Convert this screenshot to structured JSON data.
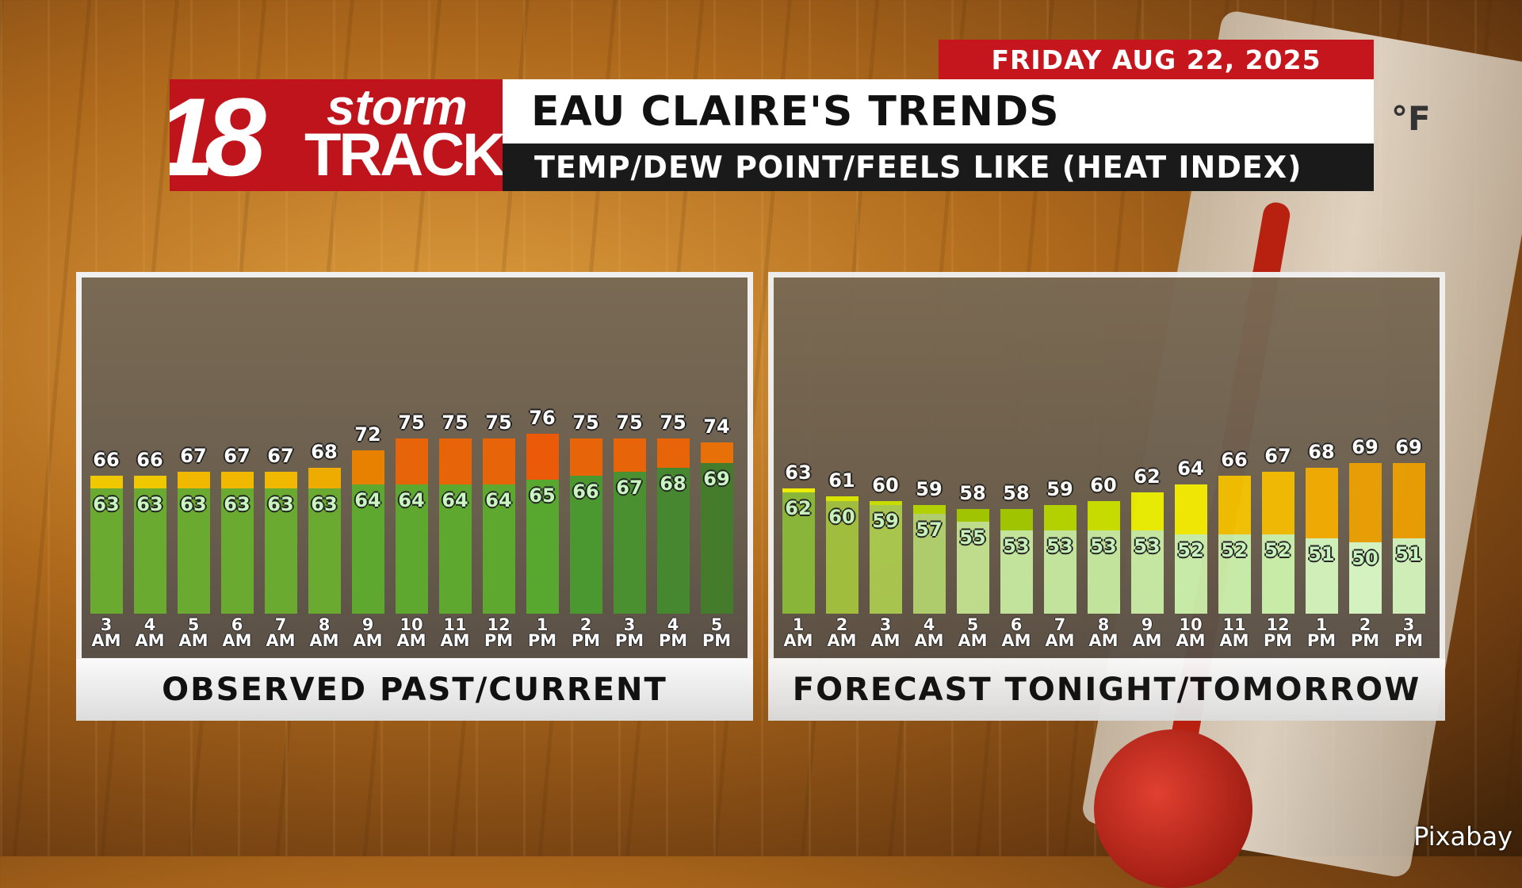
{
  "header": {
    "date": "FRIDAY AUG 22, 2025",
    "logo_number": "18",
    "logo_storm": "storm",
    "logo_track": "TRACK",
    "title": "EAU CLAIRE'S TRENDS",
    "subtitle": "TEMP/DEW POINT/FEELS LIKE (HEAT INDEX)"
  },
  "background": {
    "thermometer_unit": "°F"
  },
  "credit": "Pixabay",
  "chart_data": [
    {
      "type": "bar",
      "title": "OBSERVED PAST/CURRENT",
      "categories": [
        [
          "3",
          "AM"
        ],
        [
          "4",
          "AM"
        ],
        [
          "5",
          "AM"
        ],
        [
          "6",
          "AM"
        ],
        [
          "7",
          "AM"
        ],
        [
          "8",
          "AM"
        ],
        [
          "9",
          "AM"
        ],
        [
          "10",
          "AM"
        ],
        [
          "11",
          "AM"
        ],
        [
          "12",
          "PM"
        ],
        [
          "1",
          "PM"
        ],
        [
          "2",
          "PM"
        ],
        [
          "3",
          "PM"
        ],
        [
          "4",
          "PM"
        ],
        [
          "5",
          "PM"
        ]
      ],
      "series": [
        {
          "values": [
            66,
            66,
            67,
            67,
            67,
            68,
            72,
            75,
            75,
            75,
            76,
            75,
            75,
            75,
            74
          ],
          "colors": [
            "#f0c800",
            "#f0c800",
            "#f0b800",
            "#f0b800",
            "#f0b800",
            "#efac00",
            "#e88000",
            "#e86408",
            "#e86408",
            "#e86408",
            "#ea5a08",
            "#e86408",
            "#e86408",
            "#e86408",
            "#e87008"
          ]
        },
        {
          "values": [
            63,
            63,
            63,
            63,
            63,
            63,
            64,
            64,
            64,
            64,
            65,
            66,
            67,
            68,
            69
          ],
          "colors": [
            "#6aaa30",
            "#6aaa30",
            "#6aaa30",
            "#6aaa30",
            "#6aaa30",
            "#6aaa30",
            "#5ea830",
            "#5ea830",
            "#5ea830",
            "#5ea830",
            "#58a830",
            "#4c9830",
            "#4a9030",
            "#468830",
            "#447c2c"
          ]
        }
      ]
    },
    {
      "type": "bar",
      "title": "FORECAST TONIGHT/TOMORROW",
      "categories": [
        [
          "1",
          "AM"
        ],
        [
          "2",
          "AM"
        ],
        [
          "3",
          "AM"
        ],
        [
          "4",
          "AM"
        ],
        [
          "5",
          "AM"
        ],
        [
          "6",
          "AM"
        ],
        [
          "7",
          "AM"
        ],
        [
          "8",
          "AM"
        ],
        [
          "9",
          "AM"
        ],
        [
          "10",
          "AM"
        ],
        [
          "11",
          "AM"
        ],
        [
          "12",
          "PM"
        ],
        [
          "1",
          "PM"
        ],
        [
          "2",
          "PM"
        ],
        [
          "3",
          "PM"
        ]
      ],
      "series": [
        {
          "values": [
            63,
            61,
            60,
            59,
            58,
            58,
            59,
            60,
            62,
            64,
            66,
            67,
            68,
            69,
            69
          ],
          "colors": [
            "#f0f000",
            "#d8e800",
            "#c8e000",
            "#b4d400",
            "#a0c800",
            "#a0c800",
            "#b4d400",
            "#c8e000",
            "#e8ec00",
            "#f0e800",
            "#f0c000",
            "#f0b800",
            "#f0a800",
            "#e89c00",
            "#e89c00"
          ]
        },
        {
          "values": [
            62,
            60,
            59,
            57,
            55,
            53,
            53,
            53,
            53,
            52,
            52,
            52,
            51,
            50,
            51
          ],
          "colors": [
            "#88b83a",
            "#a0c040",
            "#a8c850",
            "#b0d070",
            "#c0e090",
            "#c4e8a0",
            "#c4e8a0",
            "#c4e8a0",
            "#c4e8a0",
            "#c8eca8",
            "#c8eca8",
            "#c8eca8",
            "#d0f0b8",
            "#d4f4c0",
            "#d0f0b8"
          ]
        }
      ]
    }
  ]
}
